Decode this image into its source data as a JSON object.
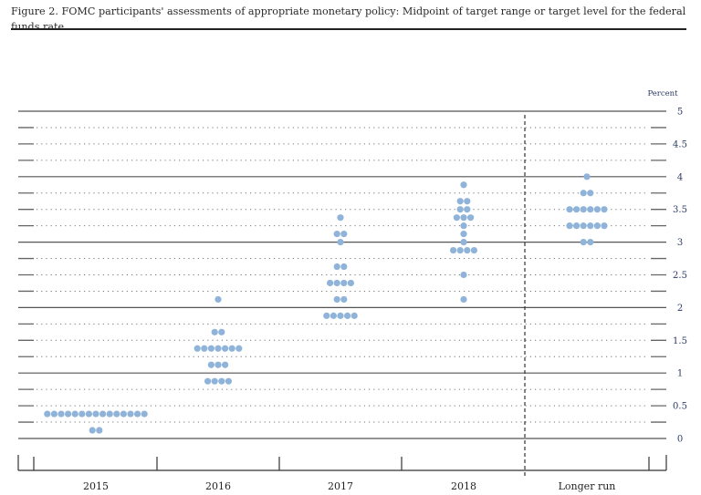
{
  "figure": {
    "title": "Figure 2. FOMC participants' assessments of appropriate monetary policy: Midpoint of target range or target level for the federal funds rate"
  },
  "chart_data": {
    "type": "scatter",
    "subtype": "dot plot",
    "title": "Figure 2. FOMC participants' assessments of appropriate monetary policy: Midpoint of target range or target level for the federal funds rate",
    "xlabel": "",
    "ylabel": "Percent",
    "categories": [
      "2015",
      "2016",
      "2017",
      "2018",
      "Longer run"
    ],
    "ylim": [
      0,
      5
    ],
    "yticks": [
      0,
      0.5,
      1,
      1.5,
      2,
      2.5,
      3,
      3.5,
      4,
      4.5,
      5
    ],
    "ytick_labels": [
      "0",
      "0.5",
      "1",
      "1.5",
      "2",
      "2.5",
      "3",
      "3.5",
      "4",
      "4.5",
      "5"
    ],
    "grid": "solid at integers, dotted at 0.25 steps",
    "dot_color": "#8fb3d9",
    "series": [
      {
        "name": "2015",
        "points": [
          {
            "rate": 0.125,
            "count": 2
          },
          {
            "rate": 0.375,
            "count": 15
          }
        ]
      },
      {
        "name": "2016",
        "points": [
          {
            "rate": 0.875,
            "count": 4
          },
          {
            "rate": 1.125,
            "count": 3
          },
          {
            "rate": 1.375,
            "count": 7
          },
          {
            "rate": 1.625,
            "count": 2
          },
          {
            "rate": 2.125,
            "count": 1
          }
        ]
      },
      {
        "name": "2017",
        "points": [
          {
            "rate": 1.875,
            "count": 5
          },
          {
            "rate": 2.125,
            "count": 2
          },
          {
            "rate": 2.375,
            "count": 4
          },
          {
            "rate": 2.625,
            "count": 2
          },
          {
            "rate": 3.0,
            "count": 1
          },
          {
            "rate": 3.125,
            "count": 2
          },
          {
            "rate": 3.375,
            "count": 1
          }
        ]
      },
      {
        "name": "2018",
        "points": [
          {
            "rate": 2.125,
            "count": 1
          },
          {
            "rate": 2.5,
            "count": 1
          },
          {
            "rate": 2.875,
            "count": 4
          },
          {
            "rate": 3.0,
            "count": 1
          },
          {
            "rate": 3.125,
            "count": 1
          },
          {
            "rate": 3.25,
            "count": 1
          },
          {
            "rate": 3.375,
            "count": 3
          },
          {
            "rate": 3.5,
            "count": 2
          },
          {
            "rate": 3.625,
            "count": 2
          },
          {
            "rate": 3.875,
            "count": 1
          }
        ]
      },
      {
        "name": "Longer run",
        "points": [
          {
            "rate": 3.0,
            "count": 2
          },
          {
            "rate": 3.25,
            "count": 6
          },
          {
            "rate": 3.5,
            "count": 6
          },
          {
            "rate": 3.75,
            "count": 2
          },
          {
            "rate": 4.0,
            "count": 1
          }
        ]
      }
    ],
    "annotations": [
      "Dashed vertical separator between 2018 and Longer run"
    ]
  }
}
